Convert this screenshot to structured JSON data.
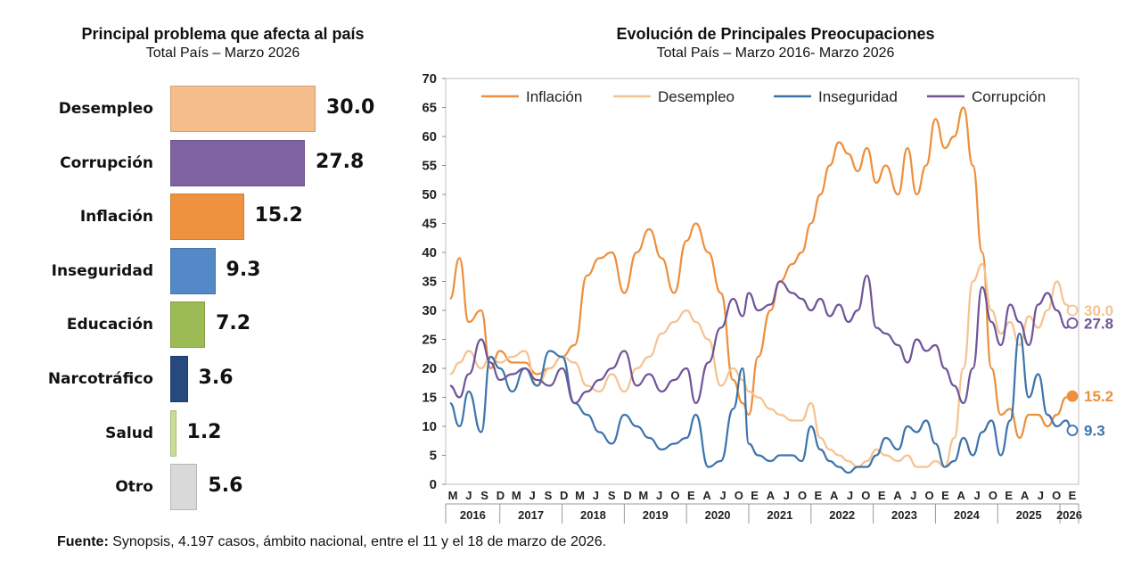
{
  "left_chart": {
    "title": "Principal problema que afecta al país",
    "subtitle": "Total País – Marzo 2026"
  },
  "right_chart": {
    "title": "Evolución de Principales Preocupaciones",
    "subtitle": "Total País – Marzo 2016- Marzo 2026"
  },
  "source": {
    "label": "Fuente:",
    "text": " Synopsis, 4.197 casos, ámbito nacional, entre el 11 y el 18 de marzo de 2026."
  },
  "chart_data": [
    {
      "type": "bar",
      "orientation": "horizontal",
      "title": "Principal problema que afecta al país",
      "subtitle": "Total País – Marzo 2026",
      "categories": [
        "Desempleo",
        "Corrupción",
        "Inflación",
        "Inseguridad",
        "Educación",
        "Narcotráfico",
        "Salud",
        "Otro"
      ],
      "values": [
        30.0,
        27.8,
        15.2,
        9.3,
        7.2,
        3.6,
        1.2,
        5.6
      ],
      "value_labels": [
        "30.0",
        "27.8",
        "15.2",
        "9.3",
        "7.2",
        "3.6",
        "1.2",
        "5.6"
      ],
      "colors": [
        "#f5bd8b",
        "#7f62a1",
        "#ee923f",
        "#5289c6",
        "#9dbb54",
        "#28497d",
        "#c9dd96",
        "#d9d9d9"
      ]
    },
    {
      "type": "line",
      "title": "Evolución de Principales Preocupaciones",
      "subtitle": "Total País – Marzo 2016- Marzo 2026",
      "ylim": [
        0,
        70
      ],
      "yticks": [
        0,
        5,
        10,
        15,
        20,
        25,
        30,
        35,
        40,
        45,
        50,
        55,
        60,
        65,
        70
      ],
      "x_month_labels": [
        "M",
        "J",
        "S",
        "D",
        "M",
        "J",
        "S",
        "D",
        "M",
        "J",
        "S",
        "D",
        "M",
        "J",
        "O",
        "E",
        "A",
        "J",
        "O",
        "E",
        "A",
        "J",
        "O",
        "E",
        "A",
        "J",
        "O",
        "E",
        "A",
        "J",
        "O",
        "E",
        "A",
        "J",
        "O",
        "E",
        "A",
        "J",
        "O",
        "E"
      ],
      "x_year_labels": [
        "2016",
        "2017",
        "2018",
        "2019",
        "2020",
        "2021",
        "2022",
        "2023",
        "2024",
        "2025",
        "2026"
      ],
      "legend_position": "top",
      "series": [
        {
          "name": "Inflación",
          "color": "#ed8f3b",
          "end_label": "15.2",
          "values": [
            [
              2016.2,
              32
            ],
            [
              2016.35,
              39
            ],
            [
              2016.5,
              28
            ],
            [
              2016.7,
              30
            ],
            [
              2016.85,
              20
            ],
            [
              2017.0,
              23
            ],
            [
              2017.2,
              21
            ],
            [
              2017.4,
              21
            ],
            [
              2017.6,
              19
            ],
            [
              2017.8,
              20
            ],
            [
              2018.0,
              22
            ],
            [
              2018.2,
              24
            ],
            [
              2018.4,
              36
            ],
            [
              2018.6,
              39
            ],
            [
              2018.8,
              40
            ],
            [
              2019.0,
              33
            ],
            [
              2019.2,
              40
            ],
            [
              2019.4,
              44
            ],
            [
              2019.6,
              39
            ],
            [
              2019.8,
              33
            ],
            [
              2020.0,
              42
            ],
            [
              2020.15,
              45
            ],
            [
              2020.35,
              40
            ],
            [
              2020.55,
              33
            ],
            [
              2020.75,
              18
            ],
            [
              2020.9,
              14
            ],
            [
              2021.0,
              12
            ],
            [
              2021.15,
              22
            ],
            [
              2021.35,
              30
            ],
            [
              2021.5,
              35
            ],
            [
              2021.7,
              38
            ],
            [
              2021.85,
              40
            ],
            [
              2022.0,
              45
            ],
            [
              2022.15,
              50
            ],
            [
              2022.3,
              55
            ],
            [
              2022.45,
              59
            ],
            [
              2022.6,
              57
            ],
            [
              2022.75,
              54
            ],
            [
              2022.9,
              58
            ],
            [
              2023.05,
              52
            ],
            [
              2023.2,
              55
            ],
            [
              2023.4,
              50
            ],
            [
              2023.55,
              58
            ],
            [
              2023.7,
              50
            ],
            [
              2023.85,
              55
            ],
            [
              2024.0,
              63
            ],
            [
              2024.15,
              58
            ],
            [
              2024.3,
              60
            ],
            [
              2024.45,
              65
            ],
            [
              2024.6,
              55
            ],
            [
              2024.75,
              40
            ],
            [
              2024.9,
              20
            ],
            [
              2025.05,
              12
            ],
            [
              2025.2,
              13
            ],
            [
              2025.35,
              8
            ],
            [
              2025.5,
              12
            ],
            [
              2025.65,
              12
            ],
            [
              2025.8,
              10
            ],
            [
              2025.95,
              12
            ],
            [
              2026.1,
              15
            ],
            [
              2026.2,
              15.2
            ]
          ]
        },
        {
          "name": "Desempleo",
          "color": "#f6c28f",
          "end_label": "30.0",
          "values": [
            [
              2016.2,
              19
            ],
            [
              2016.35,
              21
            ],
            [
              2016.5,
              23
            ],
            [
              2016.7,
              20
            ],
            [
              2016.85,
              22
            ],
            [
              2017.0,
              21
            ],
            [
              2017.2,
              22
            ],
            [
              2017.4,
              23
            ],
            [
              2017.6,
              17
            ],
            [
              2017.8,
              20
            ],
            [
              2018.0,
              22
            ],
            [
              2018.2,
              21
            ],
            [
              2018.4,
              17
            ],
            [
              2018.6,
              16
            ],
            [
              2018.8,
              19
            ],
            [
              2019.0,
              16
            ],
            [
              2019.2,
              20
            ],
            [
              2019.4,
              22
            ],
            [
              2019.6,
              26
            ],
            [
              2019.8,
              28
            ],
            [
              2020.0,
              30
            ],
            [
              2020.15,
              28
            ],
            [
              2020.35,
              25
            ],
            [
              2020.55,
              17
            ],
            [
              2020.75,
              20
            ],
            [
              2020.9,
              18
            ],
            [
              2021.0,
              16
            ],
            [
              2021.15,
              15
            ],
            [
              2021.35,
              13
            ],
            [
              2021.5,
              12
            ],
            [
              2021.7,
              11
            ],
            [
              2021.85,
              11
            ],
            [
              2022.0,
              14
            ],
            [
              2022.15,
              8
            ],
            [
              2022.3,
              6
            ],
            [
              2022.45,
              5
            ],
            [
              2022.6,
              4
            ],
            [
              2022.75,
              3
            ],
            [
              2022.9,
              4
            ],
            [
              2023.05,
              6
            ],
            [
              2023.2,
              5
            ],
            [
              2023.4,
              4
            ],
            [
              2023.55,
              5
            ],
            [
              2023.7,
              3
            ],
            [
              2023.85,
              3
            ],
            [
              2024.0,
              4
            ],
            [
              2024.15,
              3
            ],
            [
              2024.3,
              8
            ],
            [
              2024.45,
              20
            ],
            [
              2024.6,
              35
            ],
            [
              2024.75,
              38
            ],
            [
              2024.9,
              30
            ],
            [
              2025.05,
              26
            ],
            [
              2025.2,
              28
            ],
            [
              2025.35,
              24
            ],
            [
              2025.5,
              29
            ],
            [
              2025.65,
              27
            ],
            [
              2025.8,
              30
            ],
            [
              2025.95,
              35
            ],
            [
              2026.1,
              31
            ],
            [
              2026.2,
              30
            ]
          ]
        },
        {
          "name": "Inseguridad",
          "color": "#3d74ac",
          "end_label": "9.3",
          "values": [
            [
              2016.2,
              14
            ],
            [
              2016.35,
              10
            ],
            [
              2016.5,
              16
            ],
            [
              2016.7,
              9
            ],
            [
              2016.85,
              22
            ],
            [
              2017.0,
              20
            ],
            [
              2017.2,
              16
            ],
            [
              2017.4,
              20
            ],
            [
              2017.6,
              17
            ],
            [
              2017.8,
              23
            ],
            [
              2018.0,
              22
            ],
            [
              2018.2,
              14
            ],
            [
              2018.4,
              12
            ],
            [
              2018.6,
              9
            ],
            [
              2018.8,
              7
            ],
            [
              2019.0,
              12
            ],
            [
              2019.2,
              10
            ],
            [
              2019.4,
              8
            ],
            [
              2019.6,
              6
            ],
            [
              2019.8,
              7
            ],
            [
              2020.0,
              8
            ],
            [
              2020.15,
              12
            ],
            [
              2020.35,
              3
            ],
            [
              2020.55,
              4
            ],
            [
              2020.75,
              13
            ],
            [
              2020.9,
              20
            ],
            [
              2021.0,
              7
            ],
            [
              2021.15,
              5
            ],
            [
              2021.35,
              4
            ],
            [
              2021.5,
              5
            ],
            [
              2021.7,
              5
            ],
            [
              2021.85,
              4
            ],
            [
              2022.0,
              10
            ],
            [
              2022.15,
              6
            ],
            [
              2022.3,
              4
            ],
            [
              2022.45,
              3
            ],
            [
              2022.6,
              2
            ],
            [
              2022.75,
              3
            ],
            [
              2022.9,
              3
            ],
            [
              2023.05,
              5
            ],
            [
              2023.2,
              8
            ],
            [
              2023.4,
              6
            ],
            [
              2023.55,
              10
            ],
            [
              2023.7,
              9
            ],
            [
              2023.85,
              11
            ],
            [
              2024.0,
              7
            ],
            [
              2024.15,
              3
            ],
            [
              2024.3,
              4
            ],
            [
              2024.45,
              8
            ],
            [
              2024.6,
              5
            ],
            [
              2024.75,
              9
            ],
            [
              2024.9,
              11
            ],
            [
              2025.05,
              5
            ],
            [
              2025.2,
              11
            ],
            [
              2025.35,
              26
            ],
            [
              2025.5,
              15
            ],
            [
              2025.65,
              19
            ],
            [
              2025.8,
              12
            ],
            [
              2025.95,
              10
            ],
            [
              2026.1,
              11
            ],
            [
              2026.2,
              9.3
            ]
          ]
        },
        {
          "name": "Corrupción",
          "color": "#6e5599",
          "end_label": "27.8",
          "values": [
            [
              2016.2,
              17
            ],
            [
              2016.35,
              15
            ],
            [
              2016.5,
              19
            ],
            [
              2016.7,
              25
            ],
            [
              2016.85,
              21
            ],
            [
              2017.0,
              18
            ],
            [
              2017.2,
              19
            ],
            [
              2017.4,
              20
            ],
            [
              2017.6,
              18
            ],
            [
              2017.8,
              17
            ],
            [
              2018.0,
              20
            ],
            [
              2018.2,
              14
            ],
            [
              2018.4,
              16
            ],
            [
              2018.6,
              18
            ],
            [
              2018.8,
              20
            ],
            [
              2019.0,
              23
            ],
            [
              2019.2,
              17
            ],
            [
              2019.4,
              19
            ],
            [
              2019.6,
              16
            ],
            [
              2019.8,
              18
            ],
            [
              2020.0,
              20
            ],
            [
              2020.15,
              14
            ],
            [
              2020.35,
              21
            ],
            [
              2020.55,
              27
            ],
            [
              2020.75,
              32
            ],
            [
              2020.9,
              29
            ],
            [
              2021.0,
              33
            ],
            [
              2021.15,
              30
            ],
            [
              2021.35,
              31
            ],
            [
              2021.5,
              35
            ],
            [
              2021.7,
              33
            ],
            [
              2021.85,
              32
            ],
            [
              2022.0,
              30
            ],
            [
              2022.15,
              32
            ],
            [
              2022.3,
              29
            ],
            [
              2022.45,
              31
            ],
            [
              2022.6,
              28
            ],
            [
              2022.75,
              30
            ],
            [
              2022.9,
              36
            ],
            [
              2023.05,
              27
            ],
            [
              2023.2,
              26
            ],
            [
              2023.4,
              24
            ],
            [
              2023.55,
              21
            ],
            [
              2023.7,
              25
            ],
            [
              2023.85,
              23
            ],
            [
              2024.0,
              24
            ],
            [
              2024.15,
              20
            ],
            [
              2024.3,
              17
            ],
            [
              2024.45,
              14
            ],
            [
              2024.6,
              20
            ],
            [
              2024.75,
              34
            ],
            [
              2024.9,
              28
            ],
            [
              2025.05,
              24
            ],
            [
              2025.2,
              31
            ],
            [
              2025.35,
              28
            ],
            [
              2025.5,
              24
            ],
            [
              2025.65,
              31
            ],
            [
              2025.8,
              33
            ],
            [
              2025.95,
              30
            ],
            [
              2026.1,
              27
            ],
            [
              2026.2,
              27.8
            ]
          ]
        }
      ]
    }
  ]
}
